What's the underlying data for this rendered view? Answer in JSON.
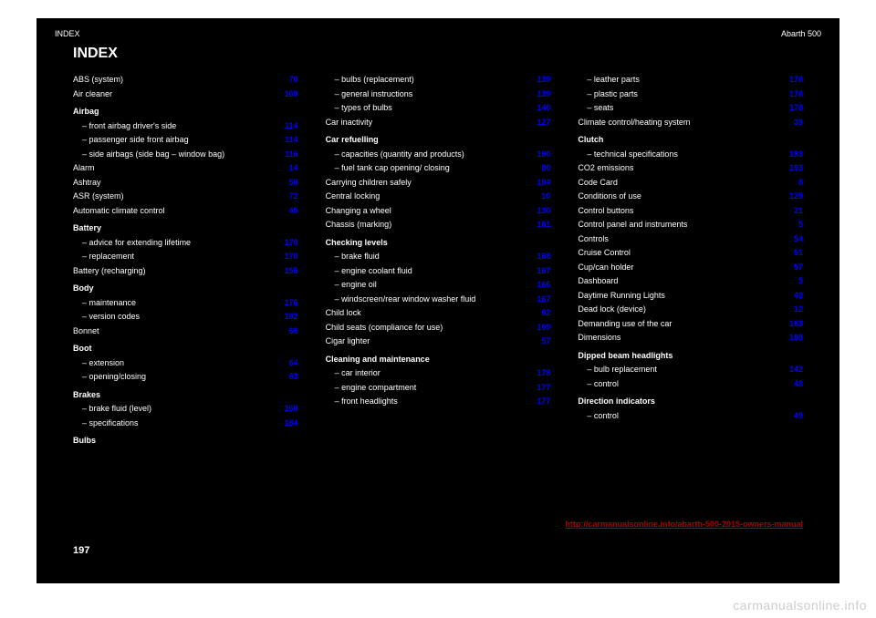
{
  "header": {
    "left": "INDEX",
    "right": "Abarth 500"
  },
  "section_title": "INDEX",
  "columns": [
    {
      "entries": [
        {
          "label": "ABS (system)",
          "pg": "70",
          "sub": 0
        },
        {
          "label": "Air cleaner",
          "pg": "169",
          "sub": 0
        },
        {
          "label": "Airbag",
          "pg": "",
          "sub": 0,
          "head": true
        },
        {
          "label": "– front airbag driver's side",
          "pg": "114",
          "sub": 1
        },
        {
          "label": "– passenger side front airbag",
          "pg": "114",
          "sub": 1
        },
        {
          "label": "– side airbags (side bag – window bag)",
          "pg": "116",
          "sub": 1
        },
        {
          "label": "Alarm",
          "pg": "14",
          "sub": 0
        },
        {
          "label": "Ashtray",
          "pg": "58",
          "sub": 0
        },
        {
          "label": "ASR (system)",
          "pg": "72",
          "sub": 0
        },
        {
          "label": "Automatic climate control",
          "pg": "45",
          "sub": 0
        },
        {
          "label": "Battery",
          "pg": "",
          "sub": 0,
          "head": true
        },
        {
          "label": "– advice for extending lifetime",
          "pg": "170",
          "sub": 1
        },
        {
          "label": "– replacement",
          "pg": "170",
          "sub": 1
        },
        {
          "label": "Battery (recharging)",
          "pg": "155",
          "sub": 0
        },
        {
          "label": "Body",
          "pg": "",
          "sub": 0,
          "head": true
        },
        {
          "label": "– maintenance",
          "pg": "176",
          "sub": 1
        },
        {
          "label": "– version codes",
          "pg": "182",
          "sub": 1
        },
        {
          "label": "Bonnet",
          "pg": "66",
          "sub": 0
        },
        {
          "label": "Boot",
          "pg": "",
          "sub": 0,
          "head": true
        },
        {
          "label": "– extension",
          "pg": "64",
          "sub": 1
        },
        {
          "label": "– opening/closing",
          "pg": "63",
          "sub": 1
        },
        {
          "label": "Brakes",
          "pg": "",
          "sub": 0,
          "head": true
        },
        {
          "label": "– brake fluid (level)",
          "pg": "168",
          "sub": 1
        },
        {
          "label": "– specifications",
          "pg": "184",
          "sub": 1
        },
        {
          "label": "Bulbs",
          "pg": "",
          "sub": 0,
          "head": true
        }
      ]
    },
    {
      "entries": [
        {
          "label": "– bulbs (replacement)",
          "pg": "139",
          "sub": 1
        },
        {
          "label": "– general instructions",
          "pg": "139",
          "sub": 1
        },
        {
          "label": "– types of bulbs",
          "pg": "140",
          "sub": 1
        },
        {
          "label": "Car inactivity",
          "pg": "127",
          "sub": 0
        },
        {
          "label": "Car refuelling",
          "pg": "",
          "sub": 0,
          "head": true
        },
        {
          "label": "– capacities (quantity and products)",
          "pg": "190",
          "sub": 1
        },
        {
          "label": "– fuel tank cap opening/ closing",
          "pg": "80",
          "sub": 1
        },
        {
          "label": "Carrying children safely",
          "pg": "104",
          "sub": 0
        },
        {
          "label": "Central locking",
          "pg": "10",
          "sub": 0
        },
        {
          "label": "Changing a wheel",
          "pg": "130",
          "sub": 0
        },
        {
          "label": "Chassis (marking)",
          "pg": "181",
          "sub": 0
        },
        {
          "label": "Checking levels",
          "pg": "",
          "sub": 0,
          "head": true
        },
        {
          "label": "– brake fluid",
          "pg": "168",
          "sub": 1
        },
        {
          "label": "– engine coolant fluid",
          "pg": "167",
          "sub": 1
        },
        {
          "label": "– engine oil",
          "pg": "166",
          "sub": 1
        },
        {
          "label": "– windscreen/rear window washer fluid",
          "pg": "167",
          "sub": 1
        },
        {
          "label": "Child lock",
          "pg": "62",
          "sub": 0
        },
        {
          "label": "Child seats (compliance for use)",
          "pg": "109",
          "sub": 0
        },
        {
          "label": "Cigar lighter",
          "pg": "57",
          "sub": 0
        },
        {
          "label": "Cleaning and maintenance",
          "pg": "",
          "sub": 0,
          "head": true
        },
        {
          "label": "– car interior",
          "pg": "178",
          "sub": 1
        },
        {
          "label": "– engine compartment",
          "pg": "177",
          "sub": 1
        },
        {
          "label": "– front headlights",
          "pg": "177",
          "sub": 1
        }
      ]
    },
    {
      "entries": [
        {
          "label": "– leather parts",
          "pg": "178",
          "sub": 1
        },
        {
          "label": "– plastic parts",
          "pg": "178",
          "sub": 1
        },
        {
          "label": "– seats",
          "pg": "178",
          "sub": 1
        },
        {
          "label": "Climate control/heating system",
          "pg": "39",
          "sub": 0
        },
        {
          "label": "Clutch",
          "pg": "",
          "sub": 0,
          "head": true
        },
        {
          "label": "– technical specifications",
          "pg": "183",
          "sub": 1
        },
        {
          "label": "CO2 emissions",
          "pg": "193",
          "sub": 0
        },
        {
          "label": "Code Card",
          "pg": "8",
          "sub": 0
        },
        {
          "label": "Conditions of use",
          "pg": "125",
          "sub": 0
        },
        {
          "label": "Control buttons",
          "pg": "21",
          "sub": 0
        },
        {
          "label": "Control panel and instruments",
          "pg": "5",
          "sub": 0
        },
        {
          "label": "Controls",
          "pg": "54",
          "sub": 0
        },
        {
          "label": "Cruise Control",
          "pg": "51",
          "sub": 0
        },
        {
          "label": "Cup/can holder",
          "pg": "57",
          "sub": 0
        },
        {
          "label": "Dashboard",
          "pg": "5",
          "sub": 0
        },
        {
          "label": "Daytime Running Lights",
          "pg": "48",
          "sub": 0
        },
        {
          "label": "Dead lock (device)",
          "pg": "12",
          "sub": 0
        },
        {
          "label": "Demanding use of the car",
          "pg": "163",
          "sub": 0
        },
        {
          "label": "Dimensions",
          "pg": "188",
          "sub": 0
        },
        {
          "label": "Dipped beam headlights",
          "pg": "",
          "sub": 0,
          "head": true
        },
        {
          "label": "– bulb replacement",
          "pg": "142",
          "sub": 1
        },
        {
          "label": "– control",
          "pg": "48",
          "sub": 1
        },
        {
          "label": "Direction indicators",
          "pg": "",
          "sub": 0,
          "head": true
        },
        {
          "label": "– control",
          "pg": "49",
          "sub": 1
        }
      ]
    }
  ],
  "red_link": "http://carmanualsonline.info/abarth-500-2015-owners-manual",
  "page_number": "197",
  "watermark": "carmanualsonline.info",
  "colors": {
    "link": "#0000ff",
    "red": "#aa0000",
    "bg": "#000000",
    "text": "#ffffff"
  }
}
